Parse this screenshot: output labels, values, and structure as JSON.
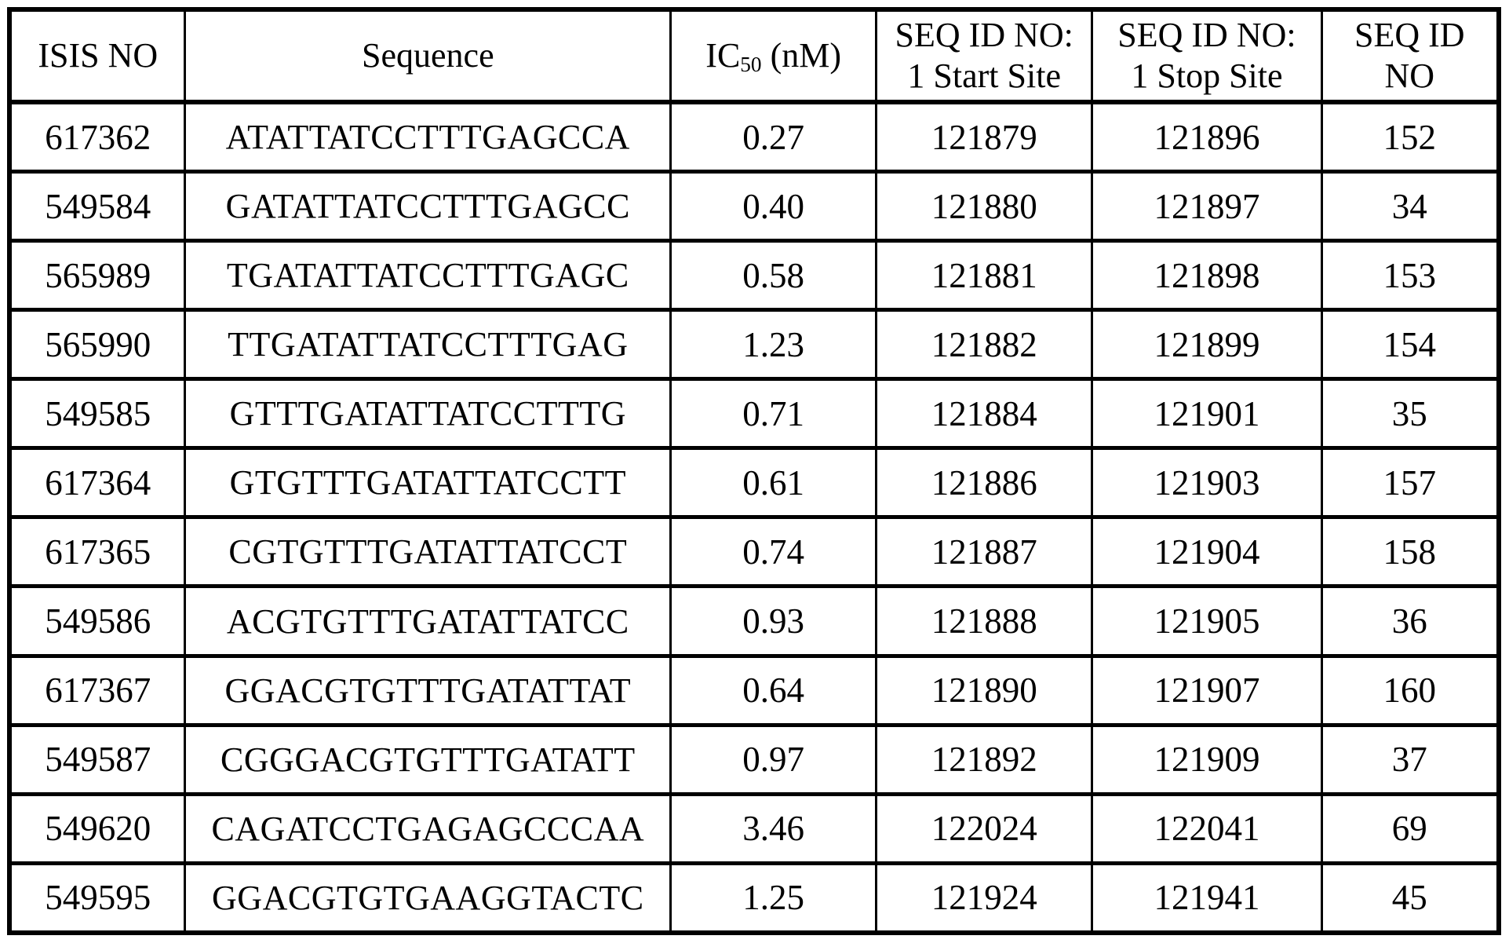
{
  "page": {
    "background_color": "#ffffff",
    "text_color": "#000000",
    "border_color": "#000000"
  },
  "table": {
    "headers": [
      {
        "lines": [
          "ISIS NO"
        ]
      },
      {
        "lines": [
          "Sequence"
        ]
      },
      {
        "prefix": "IC",
        "subscript": "50",
        "suffix": " (nM)"
      },
      {
        "lines": [
          "SEQ ID NO:",
          "1 Start Site"
        ]
      },
      {
        "lines": [
          "SEQ ID NO:",
          "1 Stop Site"
        ]
      },
      {
        "lines": [
          "SEQ ID",
          "NO"
        ]
      }
    ],
    "rows": [
      [
        "617362",
        "ATATTATCCTTTGAGCCA",
        "0.27",
        "121879",
        "121896",
        "152"
      ],
      [
        "549584",
        "GATATTATCCTTTGAGCC",
        "0.40",
        "121880",
        "121897",
        "34"
      ],
      [
        "565989",
        "TGATATTATCCTTTGAGC",
        "0.58",
        "121881",
        "121898",
        "153"
      ],
      [
        "565990",
        "TTGATATTATCCTTTGAG",
        "1.23",
        "121882",
        "121899",
        "154"
      ],
      [
        "549585",
        "GTTTGATATTATCCTTTG",
        "0.71",
        "121884",
        "121901",
        "35"
      ],
      [
        "617364",
        "GTGTTTGATATTATCCTT",
        "0.61",
        "121886",
        "121903",
        "157"
      ],
      [
        "617365",
        "CGTGTTTGATATTATCCT",
        "0.74",
        "121887",
        "121904",
        "158"
      ],
      [
        "549586",
        "ACGTGTTTGATATTATCC",
        "0.93",
        "121888",
        "121905",
        "36"
      ],
      [
        "617367",
        "GGACGTGTTTGATATTAT",
        "0.64",
        "121890",
        "121907",
        "160"
      ],
      [
        "549587",
        "CGGGACGTGTTTGATATT",
        "0.97",
        "121892",
        "121909",
        "37"
      ],
      [
        "549620",
        "CAGATCCTGAGAGCCCAA",
        "3.46",
        "122024",
        "122041",
        "69"
      ],
      [
        "549595",
        "GGACGTGTGAAGGTACTC",
        "1.25",
        "121924",
        "121941",
        "45"
      ]
    ]
  }
}
